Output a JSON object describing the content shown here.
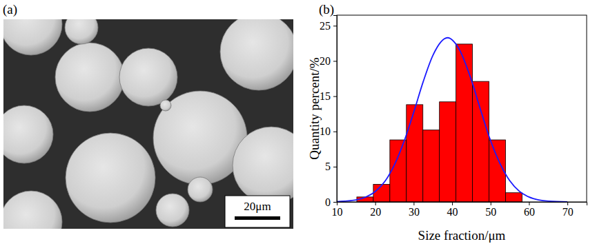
{
  "image": {
    "label": "(a)",
    "scale_bar": "20μm"
  },
  "chart_data": {
    "type": "histogram",
    "title": "(b)",
    "x_label": "Size fraction/μm",
    "y_label": "Quantity percent/%",
    "bins": [
      15.2,
      19.5,
      23.8,
      28.1,
      32.4,
      36.7,
      41.0,
      45.3,
      49.6,
      53.9,
      58.2
    ],
    "values": [
      0.7,
      2.5,
      8.8,
      13.8,
      10.2,
      14.2,
      22.4,
      17.1,
      8.8,
      1.3
    ],
    "color": "#ff0000",
    "curve": {
      "type": "line",
      "x": [
        10,
        15,
        17.5,
        20,
        22.5,
        25,
        27.5,
        30,
        32.5,
        35,
        38.8,
        42,
        45,
        47.5,
        50,
        52.5,
        55,
        57.5,
        60,
        62.5,
        65,
        70
      ],
      "values": [
        0.04,
        0.28,
        0.68,
        1.47,
        2.9,
        5.26,
        8.6,
        12.7,
        17.1,
        20.8,
        23.3,
        21.5,
        17.3,
        12.9,
        8.7,
        5.4,
        3.0,
        1.5,
        0.7,
        0.29,
        0.11,
        0.01
      ],
      "color": "#1a1aff"
    },
    "xlim": [
      10,
      75
    ],
    "ylim": [
      0,
      26.5
    ],
    "xticks": [
      10,
      20,
      30,
      40,
      50,
      60,
      70
    ],
    "yticks": [
      0,
      5,
      10,
      15,
      20,
      25
    ]
  }
}
